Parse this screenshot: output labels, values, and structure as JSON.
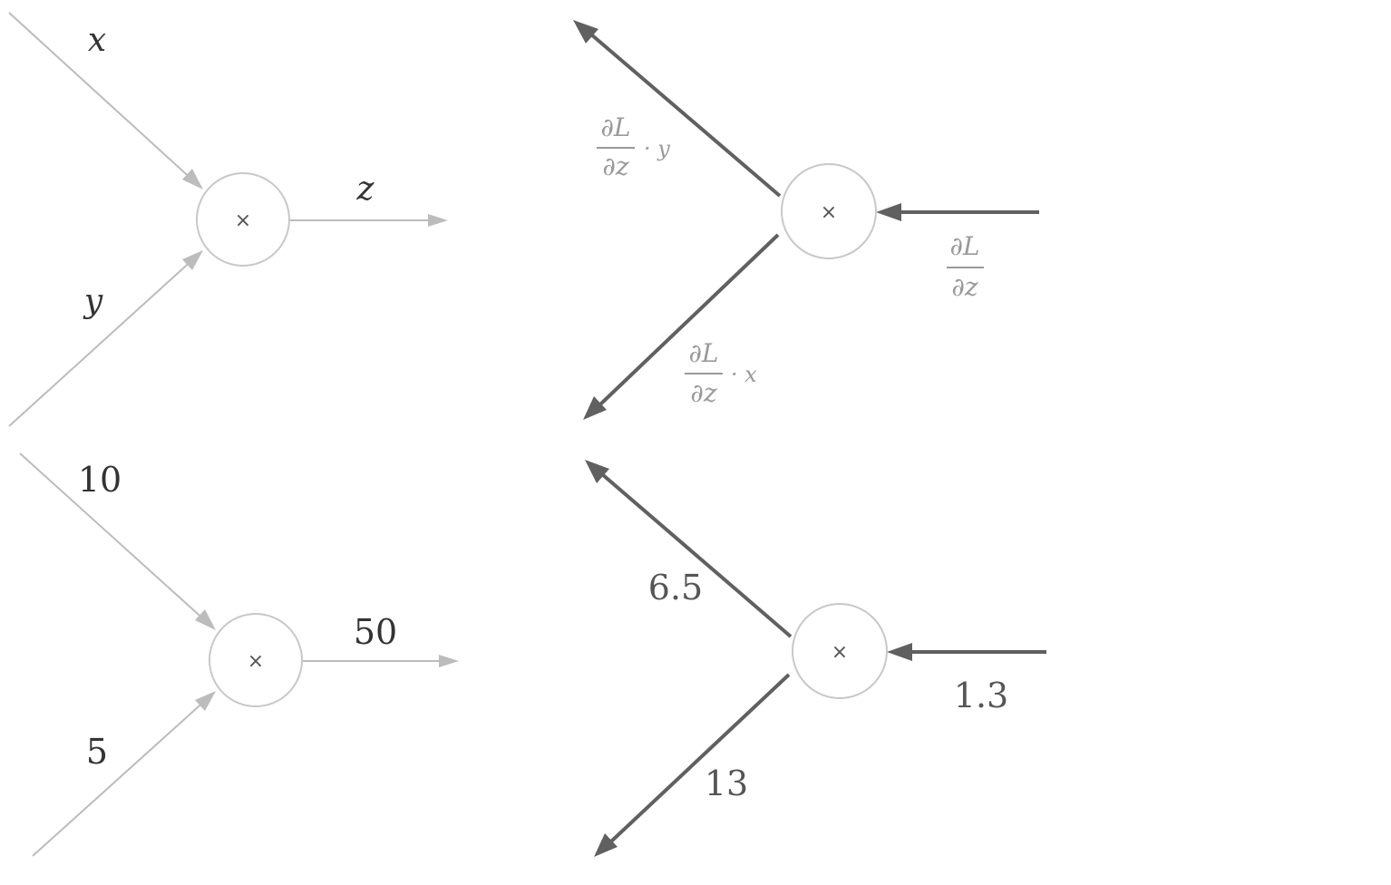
{
  "top_left": {
    "input_x": "x",
    "input_y": "y",
    "output": "z",
    "op": "×"
  },
  "top_right": {
    "op": "×",
    "upstream": {
      "num": "∂L",
      "den": "∂z"
    },
    "grad_x": {
      "num": "∂L",
      "den": "∂z",
      "mult": "· y"
    },
    "grad_y": {
      "num": "∂L",
      "den": "∂z",
      "mult": "· x"
    }
  },
  "bottom_left": {
    "input_x": "10",
    "input_y": "5",
    "output": "50",
    "op": "×"
  },
  "bottom_right": {
    "op": "×",
    "upstream": "1.3",
    "grad_x": "6.5",
    "grad_y": "13"
  }
}
